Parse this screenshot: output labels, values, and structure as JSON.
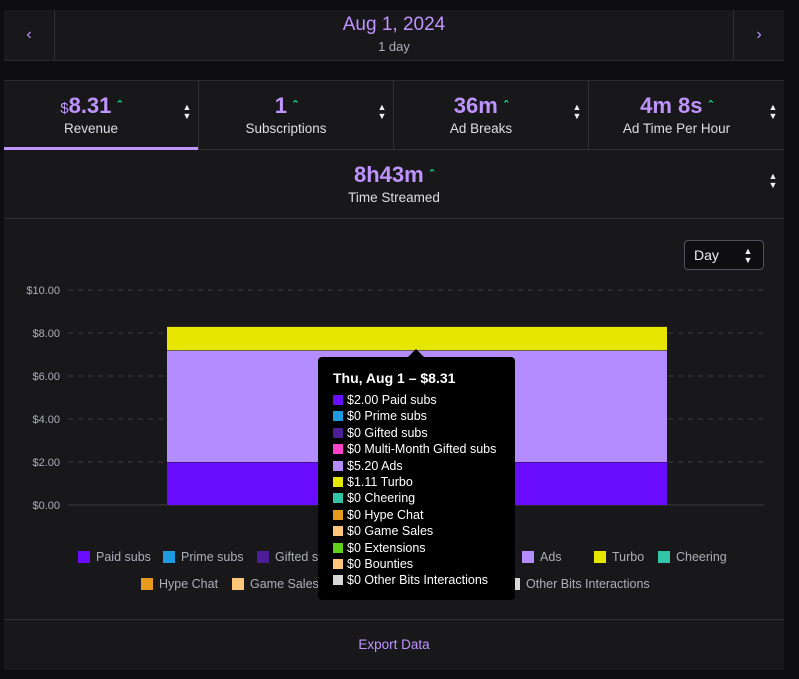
{
  "date_nav": {
    "title": "Aug 1, 2024",
    "subtitle": "1 day",
    "prev_icon": "chevron-left-icon",
    "next_icon": "chevron-right-icon"
  },
  "metrics": [
    {
      "currency": "$",
      "value": "8.31",
      "label": "Revenue",
      "trend": "up"
    },
    {
      "currency": "",
      "value": "1",
      "label": "Subscriptions",
      "trend": "up"
    },
    {
      "currency": "",
      "value": "36m",
      "label": "Ad Breaks",
      "trend": "up"
    },
    {
      "currency": "",
      "value": "4m 8s",
      "label": "Ad Time Per Hour",
      "trend": "up"
    },
    {
      "currency": "",
      "value": "8h43m",
      "label": "Time Streamed",
      "trend": "up"
    }
  ],
  "period_select": {
    "value": "Day"
  },
  "colors": {
    "accent": "#bf94ff",
    "trend_up": "#00f593",
    "paid_subs": "#6a0dff",
    "prime_subs": "#1e9be0",
    "gifted_subs": "#4b1d96",
    "multi_month_gifted": "#ff42c8",
    "ads": "#b38cff",
    "turbo": "#e6e600",
    "cheering": "#33c4a8",
    "hype_chat": "#e69a1e",
    "game_sales": "#ffc57a",
    "extensions": "#5fd11b",
    "bounties": "#ffc57a",
    "other_bits": "#d8d8d8"
  },
  "chart_data": {
    "type": "bar",
    "stacked": true,
    "categories": [
      "Thu, Aug 1"
    ],
    "ylim": [
      0,
      10
    ],
    "yticks": [
      "$0.00",
      "$2.00",
      "$4.00",
      "$6.00",
      "$8.00",
      "$10.00"
    ],
    "grid": true,
    "legend_position": "bottom",
    "series": [
      {
        "name": "Paid subs",
        "color_key": "paid_subs",
        "values": [
          2.0
        ]
      },
      {
        "name": "Ads",
        "color_key": "ads",
        "values": [
          5.2
        ]
      },
      {
        "name": "Turbo",
        "color_key": "turbo",
        "values": [
          1.11
        ]
      }
    ]
  },
  "legend": [
    {
      "label": "Paid subs",
      "color_key": "paid_subs"
    },
    {
      "label": "Prime subs",
      "color_key": "prime_subs"
    },
    {
      "label": "Gifted s",
      "color_key": "gifted_subs"
    },
    {
      "label": "Ads",
      "color_key": "ads"
    },
    {
      "label": "Turbo",
      "color_key": "turbo"
    },
    {
      "label": "Cheering",
      "color_key": "cheering"
    },
    {
      "label": "Hype Chat",
      "color_key": "hype_chat"
    },
    {
      "label": "Game Sales",
      "color_key": "game_sales"
    },
    {
      "label": "Other Bits Interactions",
      "color_key": "other_bits"
    }
  ],
  "tooltip": {
    "title": "Thu, Aug 1 – $8.31",
    "rows": [
      {
        "text": "$2.00 Paid subs",
        "color_key": "paid_subs"
      },
      {
        "text": "$0 Prime subs",
        "color_key": "prime_subs"
      },
      {
        "text": "$0 Gifted subs",
        "color_key": "gifted_subs"
      },
      {
        "text": "$0 Multi-Month Gifted subs",
        "color_key": "multi_month_gifted"
      },
      {
        "text": "$5.20 Ads",
        "color_key": "ads"
      },
      {
        "text": "$1.11 Turbo",
        "color_key": "turbo"
      },
      {
        "text": "$0 Cheering",
        "color_key": "cheering"
      },
      {
        "text": "$0 Hype Chat",
        "color_key": "hype_chat"
      },
      {
        "text": "$0 Game Sales",
        "color_key": "game_sales"
      },
      {
        "text": "$0 Extensions",
        "color_key": "extensions"
      },
      {
        "text": "$0 Bounties",
        "color_key": "bounties"
      },
      {
        "text": "$0 Other Bits Interactions",
        "color_key": "other_bits"
      }
    ]
  },
  "export": {
    "label": "Export Data"
  }
}
